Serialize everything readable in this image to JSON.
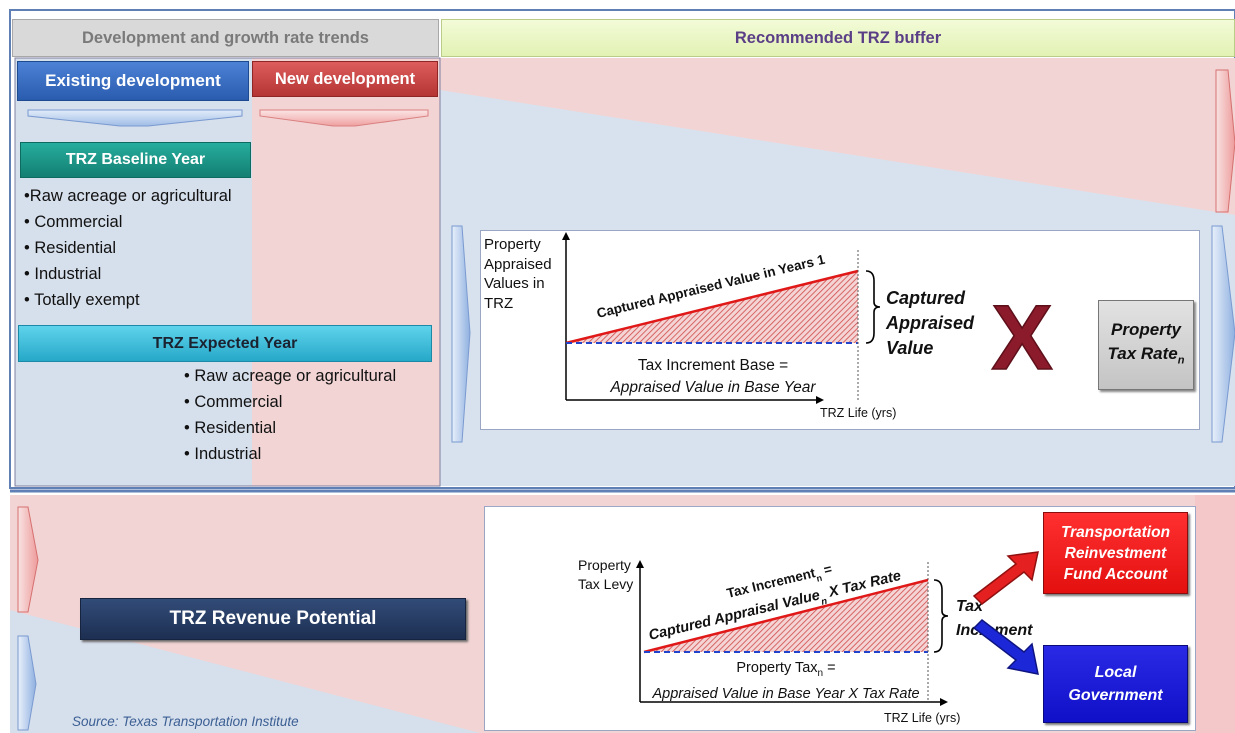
{
  "header": {
    "left_title": "Development and growth rate trends",
    "right_title": "Recommended TRZ buffer"
  },
  "development": {
    "existing_label": "Existing development",
    "new_label": "New development"
  },
  "baseline": {
    "title": "TRZ Baseline Year",
    "items": [
      "•Raw acreage or agricultural",
      "• Commercial",
      "• Residential",
      "• Industrial",
      "• Totally exempt"
    ]
  },
  "expected": {
    "title": "TRZ Expected Year",
    "items": [
      "• Raw acreage or agricultural",
      "• Commercial",
      "• Residential",
      "• Industrial"
    ]
  },
  "appraised_chart": {
    "y_label": [
      "Property",
      "Appraised",
      "Values in",
      "TRZ"
    ],
    "line_label": "Captured Appraised Value in Years 1",
    "base_label": [
      "Tax Increment Base =",
      "Appraised Value in Base Year"
    ],
    "x_label": "TRZ Life (yrs)",
    "brace_label": [
      "Captured",
      "Appraised",
      "Value"
    ],
    "multiply_symbol": "X",
    "rate_box": [
      "Property",
      "Tax Rate"
    ],
    "rate_subscript": "n"
  },
  "revenue": {
    "label": "TRZ Revenue Potential"
  },
  "levy_chart": {
    "y_label": [
      "Property",
      "Tax Levy"
    ],
    "line_label_1": "Tax Increment",
    "line_label_1_sub": "n",
    "line_label_1_end": " =",
    "line_label_2": "Captured Appraisal Value",
    "line_label_2_sub": "n",
    "line_label_2_end": " X Tax Rate",
    "base_label_1": "Property Tax",
    "base_label_1_sub": "n",
    "base_label_1_end": " =",
    "base_label_2": "Appraised Value in Base Year X Tax Rate",
    "x_label": "TRZ Life (yrs)",
    "brace_label": [
      "Tax",
      "Increment"
    ]
  },
  "destinations": {
    "fund": [
      "Transportation",
      "Reinvestment",
      "Fund Account"
    ],
    "government": [
      "Local",
      "Government"
    ]
  },
  "source": "Source: Texas Transportation Institute",
  "colors": {
    "existing_blue": "#3b6fc4",
    "new_red": "#c84040",
    "teal": "#1c9a8c",
    "cyan": "#38bcd8",
    "navy": "#23385c",
    "maroon": "#8b1a2a",
    "red_box": "#ee1c1c",
    "blue_box": "#1414d6",
    "header_green": "#ecf8c8",
    "header_grey": "#d9d9d9"
  }
}
